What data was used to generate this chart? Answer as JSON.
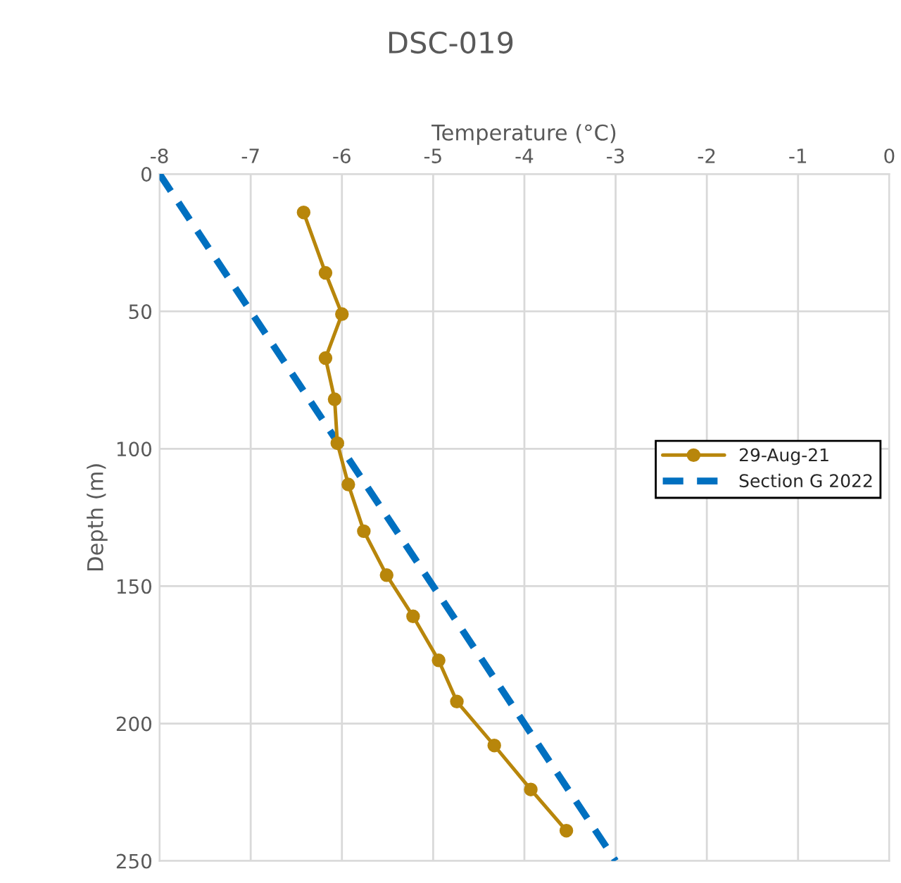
{
  "chart_data": {
    "type": "line",
    "title": "DSC-019",
    "xlabel": "Temperature (°C)",
    "ylabel": "Depth (m)",
    "xlim": [
      -8,
      0
    ],
    "xticks": [
      -8,
      -7,
      -6,
      -5,
      -4,
      -3,
      -2,
      -1,
      0
    ],
    "ylim": [
      250,
      0
    ],
    "yticks": [
      0,
      50,
      100,
      150,
      200,
      250
    ],
    "grid": true,
    "legend": "right",
    "series": [
      {
        "name": "29-Aug-21",
        "color": "#b8860b",
        "marker": "circle",
        "line_style": "solid",
        "x": [
          -6.42,
          -6.18,
          -6.0,
          -6.18,
          -6.08,
          -6.05,
          -5.93,
          -5.76,
          -5.51,
          -5.22,
          -4.94,
          -4.74,
          -4.33,
          -3.93,
          -3.54
        ],
        "values": [
          14,
          36,
          51,
          67,
          82,
          98,
          113,
          130,
          146,
          161,
          177,
          192,
          208,
          224,
          239
        ]
      },
      {
        "name": "Section G 2022",
        "color": "#0070c0",
        "marker": "none",
        "line_style": "dashed",
        "x": [
          -8,
          -3
        ],
        "values": [
          0,
          250
        ]
      }
    ]
  }
}
